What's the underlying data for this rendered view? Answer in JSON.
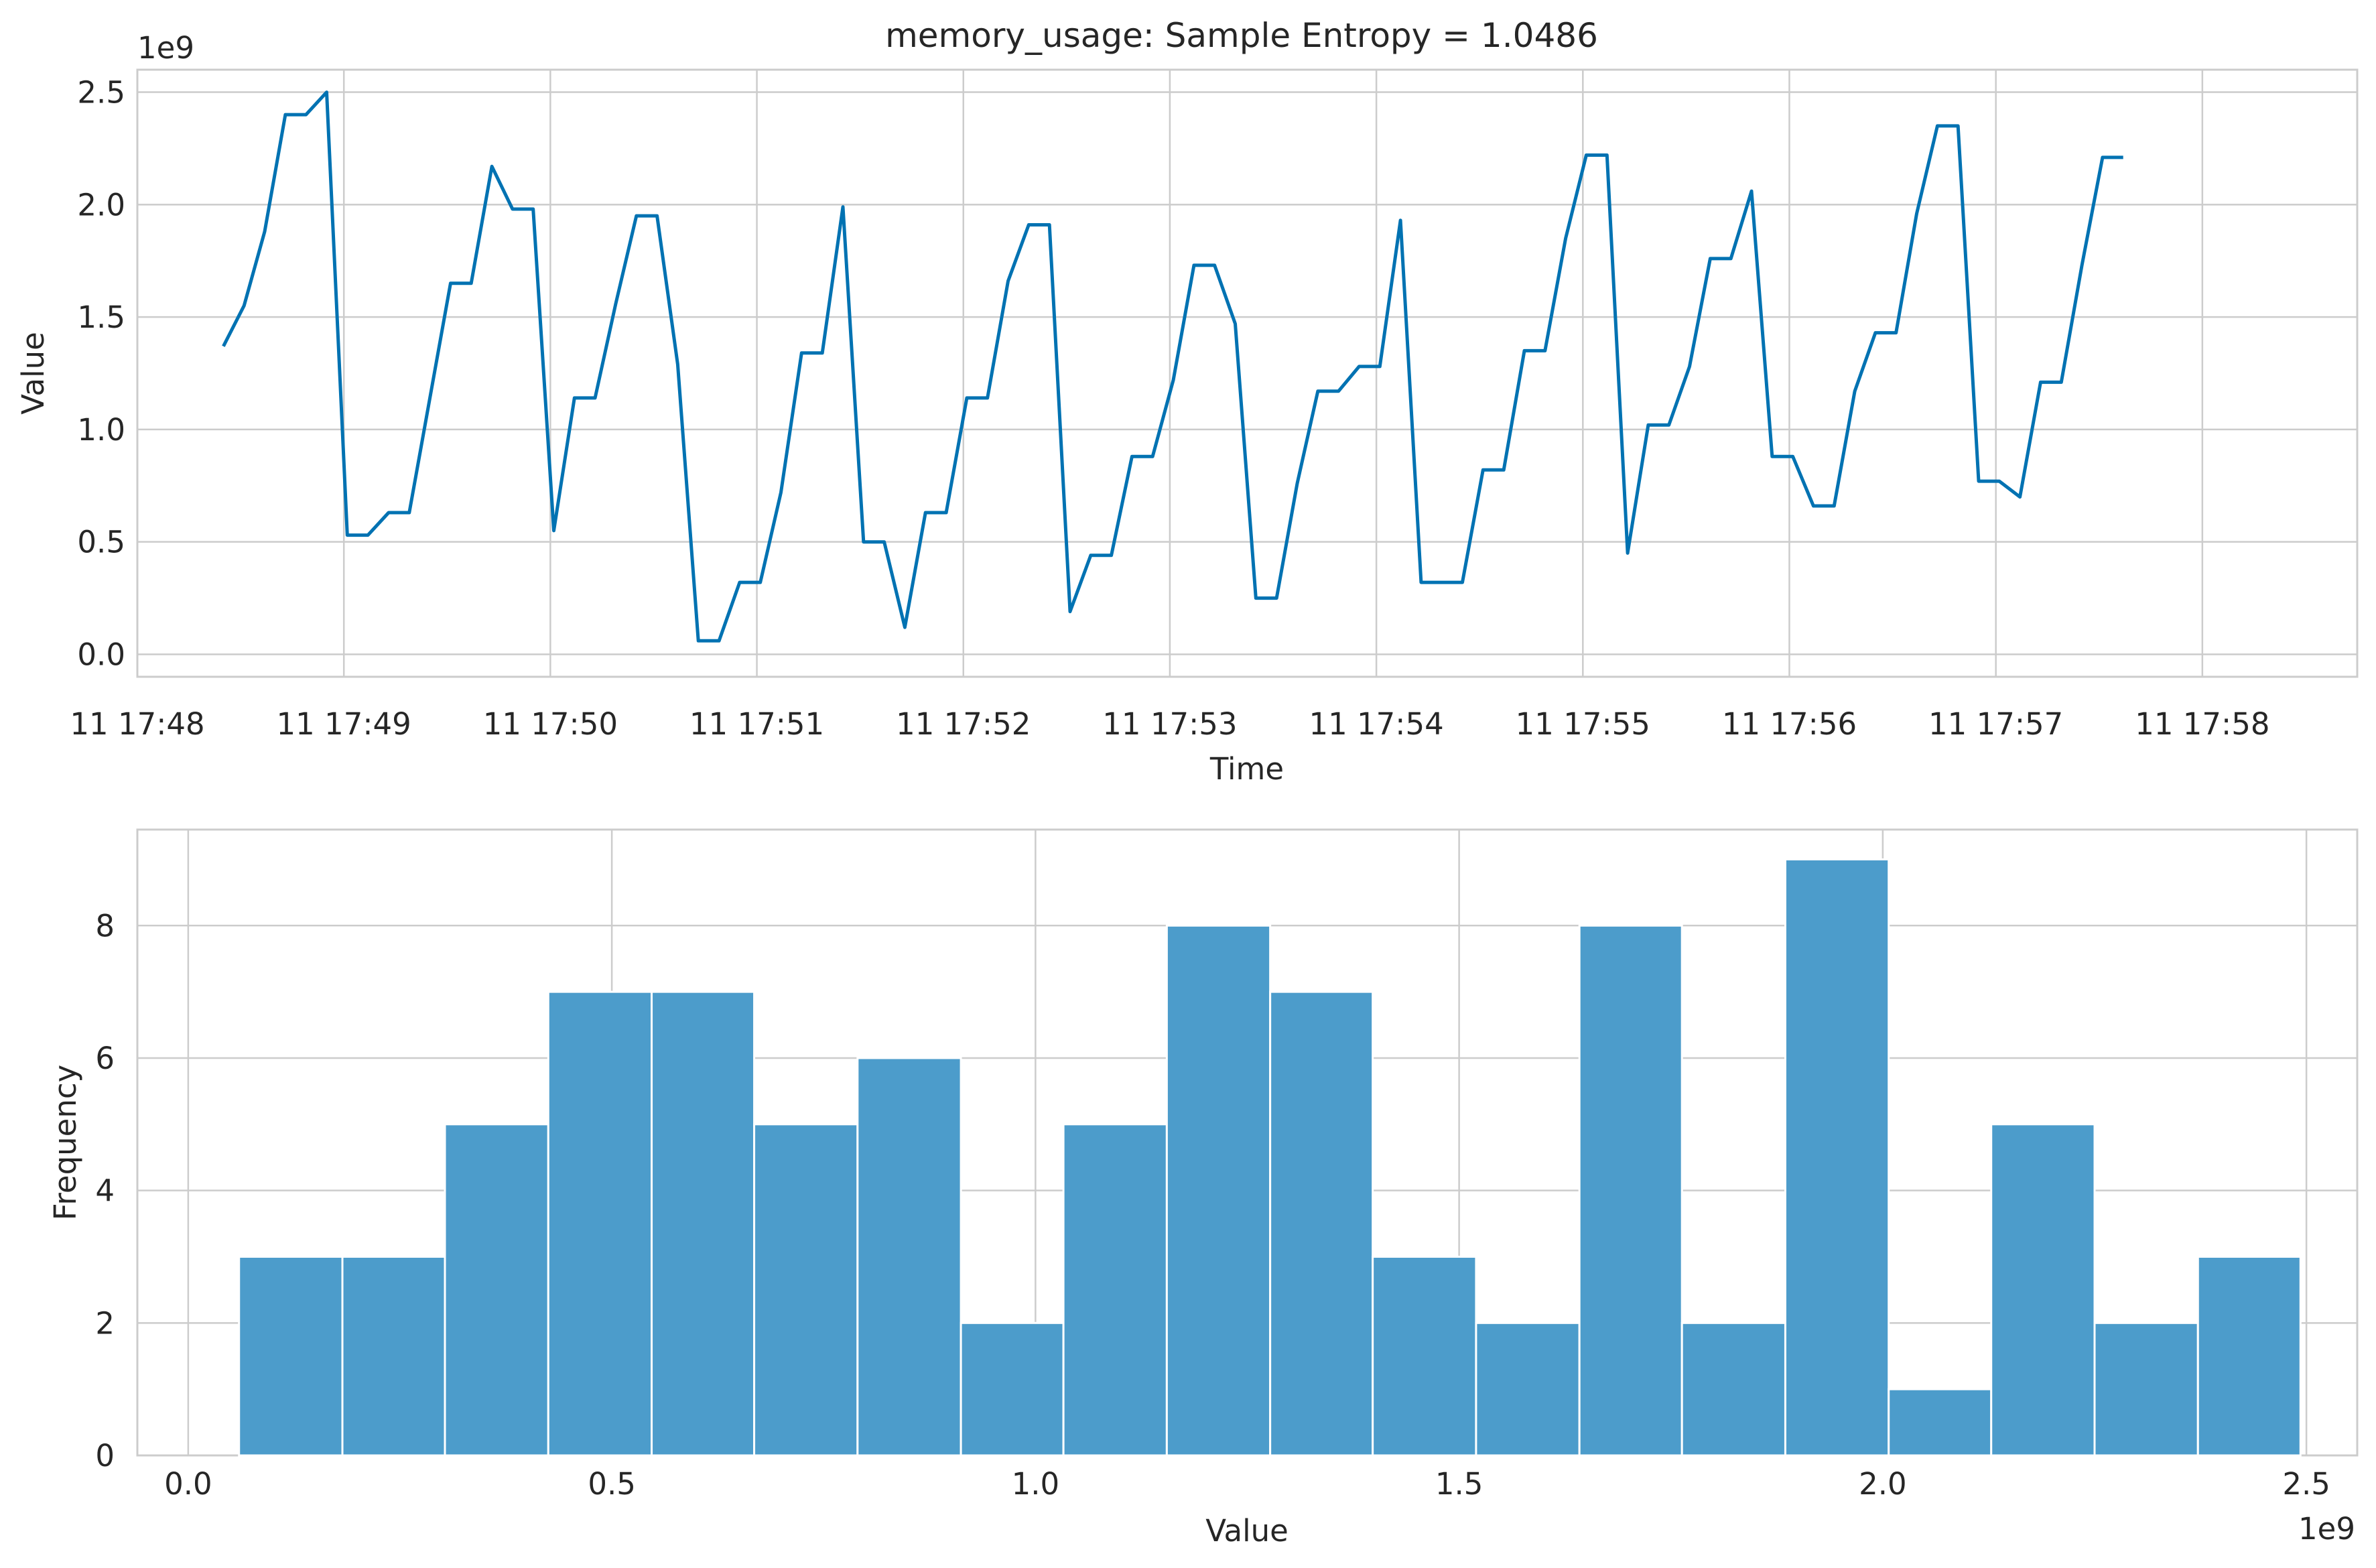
{
  "chart_data": [
    {
      "type": "line",
      "title": "memory_usage: Sample Entropy = 1.0486",
      "xlabel": "Time",
      "ylabel": "Value",
      "y_offset_label": "1e9",
      "color": "#0072b2",
      "grid": true,
      "xlim": [
        "17:48:00",
        "17:58:45"
      ],
      "ylim": [
        -0.1,
        2.6
      ],
      "y_scale_note": "values in units of 1e9",
      "x_ticks": [
        "11 17:48",
        "11 17:49",
        "11 17:50",
        "11 17:51",
        "11 17:52",
        "11 17:53",
        "11 17:54",
        "11 17:55",
        "11 17:56",
        "11 17:57",
        "11 17:58"
      ],
      "y_ticks": [
        "0.0",
        "0.5",
        "1.0",
        "1.5",
        "2.0",
        "2.5"
      ],
      "x_start": "17:48:25",
      "x_step_seconds": 6,
      "values": [
        1.37,
        1.55,
        1.88,
        2.4,
        2.4,
        2.5,
        0.53,
        0.53,
        0.63,
        0.63,
        1.14,
        1.65,
        1.65,
        2.17,
        1.98,
        1.98,
        0.55,
        1.14,
        1.14,
        1.56,
        1.95,
        1.95,
        1.29,
        0.06,
        0.06,
        0.32,
        0.32,
        0.72,
        1.34,
        1.34,
        1.99,
        0.5,
        0.5,
        0.12,
        0.63,
        0.63,
        1.14,
        1.14,
        1.66,
        1.91,
        1.91,
        0.19,
        0.44,
        0.44,
        0.88,
        0.88,
        1.22,
        1.73,
        1.73,
        1.47,
        0.25,
        0.25,
        0.76,
        1.17,
        1.17,
        1.28,
        1.28,
        1.93,
        0.32,
        0.32,
        0.32,
        0.82,
        0.82,
        1.35,
        1.35,
        1.85,
        2.22,
        2.22,
        0.45,
        1.02,
        1.02,
        1.28,
        1.76,
        1.76,
        2.06,
        0.88,
        0.88,
        0.66,
        0.66,
        1.17,
        1.43,
        1.43,
        1.96,
        2.35,
        2.35,
        0.77,
        0.77,
        0.7,
        1.21,
        1.21,
        1.73,
        2.21,
        2.21
      ]
    },
    {
      "type": "bar",
      "subtype": "histogram",
      "xlabel": "Value",
      "ylabel": "Frequency",
      "x_offset_label": "1e9",
      "color": "#4c9ccb",
      "grid": true,
      "xlim": [
        -0.06,
        2.56
      ],
      "ylim": [
        0,
        9.45
      ],
      "x_ticks": [
        "0.0",
        "0.5",
        "1.0",
        "1.5",
        "2.0",
        "2.5"
      ],
      "y_ticks": [
        "0",
        "2",
        "4",
        "6",
        "8"
      ],
      "bin_edges": [
        0.06,
        0.182,
        0.303,
        0.425,
        0.547,
        0.668,
        0.79,
        0.912,
        1.033,
        1.155,
        1.277,
        1.398,
        1.52,
        1.642,
        1.763,
        1.885,
        2.007,
        2.128,
        2.25,
        2.372,
        2.493
      ],
      "values": [
        3,
        3,
        5,
        7,
        7,
        5,
        6,
        2,
        5,
        8,
        7,
        3,
        2,
        8,
        2,
        9,
        1,
        5,
        2,
        3
      ]
    }
  ]
}
